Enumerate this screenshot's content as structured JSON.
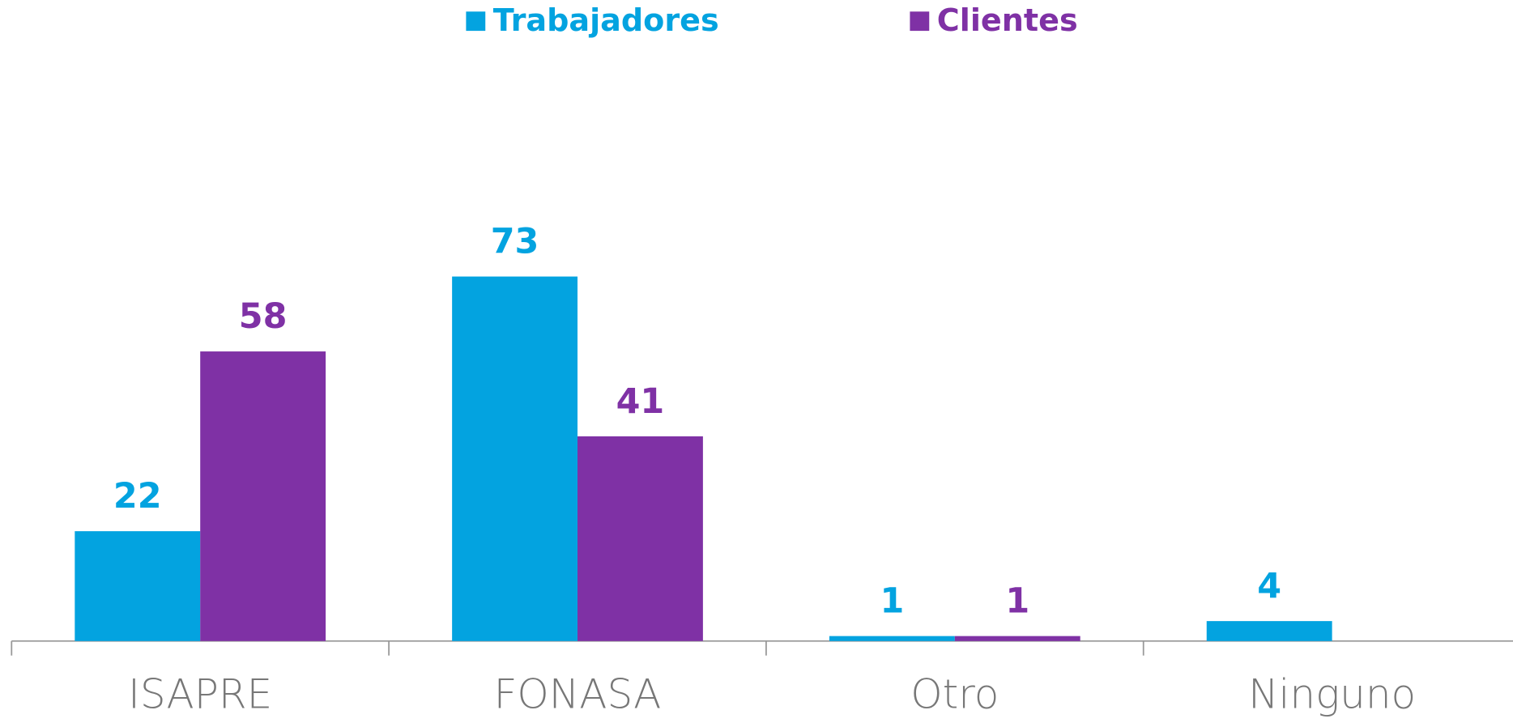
{
  "chart_data": {
    "type": "bar",
    "categories": [
      "ISAPRE",
      "FONASA",
      "Otro",
      "Ninguno"
    ],
    "series": [
      {
        "name": "Trabajadores",
        "color": "#03a3e0",
        "values": [
          22,
          73,
          1,
          4
        ]
      },
      {
        "name": "Clientes",
        "color": "#7f31a5",
        "values": [
          58,
          41,
          1,
          null
        ]
      }
    ],
    "ylim": [
      0,
      100
    ],
    "legend": "top"
  }
}
